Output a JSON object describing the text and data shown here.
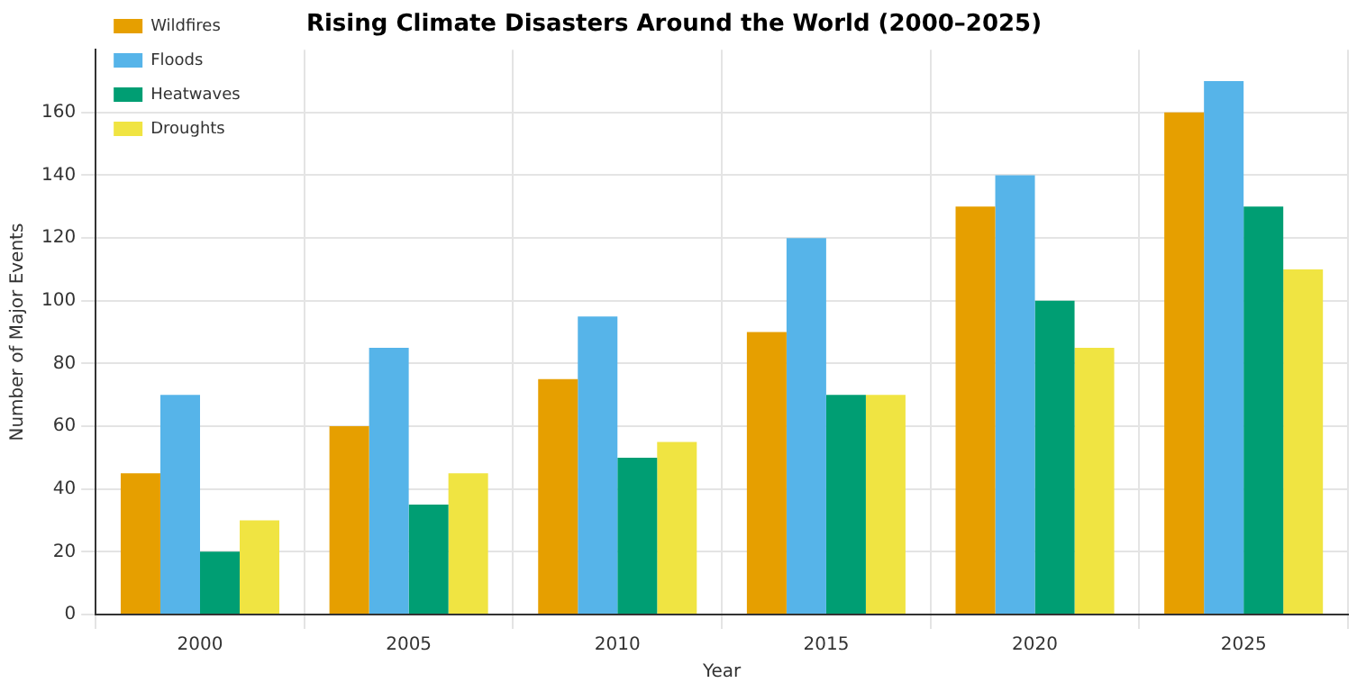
{
  "chart_data": {
    "type": "bar",
    "title": "Rising Climate Disasters Around the World (2000–2025)",
    "xlabel": "Year",
    "ylabel": "Number of Major Events",
    "categories": [
      "2000",
      "2005",
      "2010",
      "2015",
      "2020",
      "2025"
    ],
    "series": [
      {
        "name": "Wildfires",
        "color": "#e69f00",
        "values": [
          45,
          60,
          75,
          90,
          130,
          160
        ]
      },
      {
        "name": "Floods",
        "color": "#56b4e9",
        "values": [
          70,
          85,
          95,
          120,
          140,
          170
        ]
      },
      {
        "name": "Heatwaves",
        "color": "#009e73",
        "values": [
          20,
          35,
          50,
          70,
          100,
          130
        ]
      },
      {
        "name": "Droughts",
        "color": "#f0e442",
        "values": [
          30,
          45,
          55,
          70,
          85,
          110
        ]
      }
    ],
    "ylim": [
      0,
      180
    ],
    "yticks": [
      0,
      20,
      40,
      60,
      80,
      100,
      120,
      140,
      160
    ],
    "grid": true,
    "legend": "top left"
  }
}
